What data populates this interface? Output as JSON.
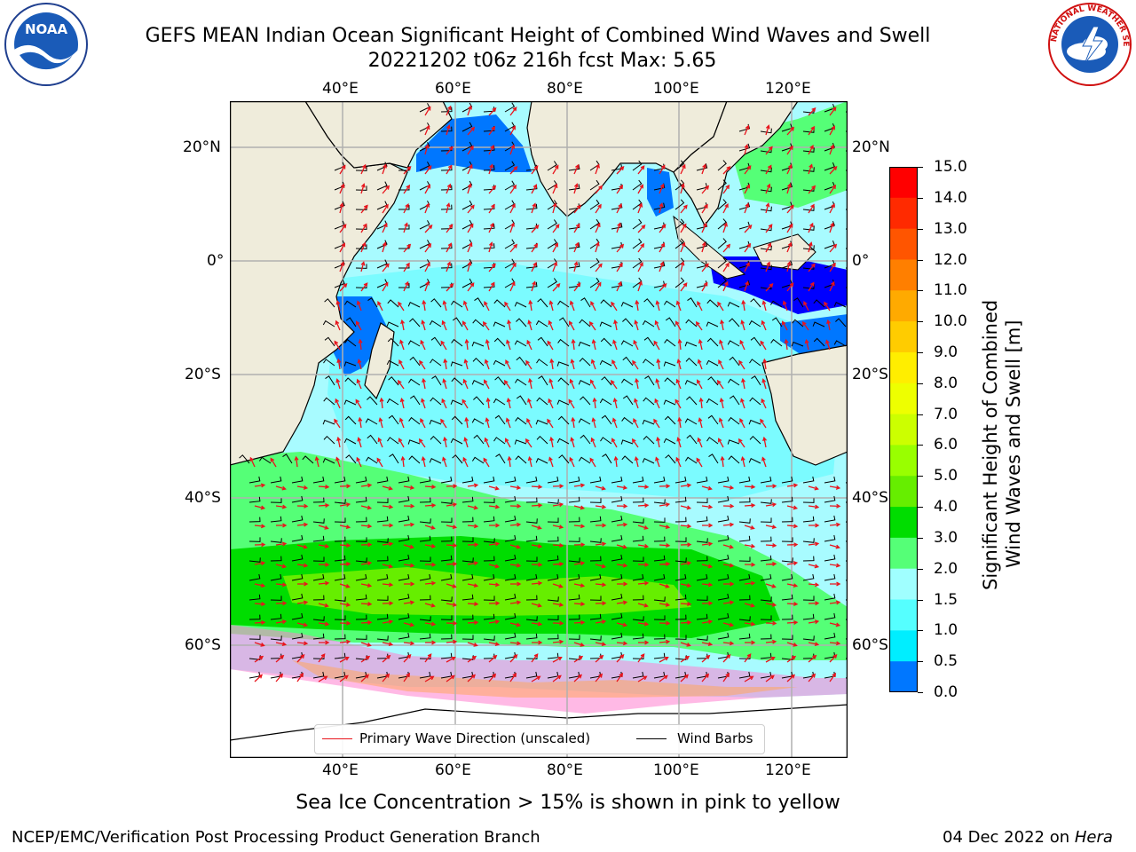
{
  "header": {
    "title_line1": "GEFS MEAN Indian Ocean Significant Height of Combined Wind Waves and Swell",
    "title_line2": "20221202 t06z 216h fcst   Max: 5.65"
  },
  "logos": {
    "left": {
      "icon": "noaa-logo",
      "text": "NOAA"
    },
    "right": {
      "icon": "nws-logo",
      "text": "NATIONAL WEATHER SERVICE"
    }
  },
  "map": {
    "lon_ticks": [
      "40°E",
      "60°E",
      "80°E",
      "100°E",
      "120°E"
    ],
    "lat_ticks": [
      "20°N",
      "0°",
      "20°S",
      "40°S",
      "60°S"
    ],
    "colors": {
      "land": "#efecdb",
      "wave_arrow": "#e8141c",
      "wind_barb": "#000000",
      "grid": "#b0b0b0"
    }
  },
  "legend": {
    "primary_wave": "Primary Wave Direction (unscaled)",
    "wind_barbs": "Wind Barbs"
  },
  "colorbar": {
    "label_line1": "Significant Height of Combined",
    "label_line2": "Wind Waves and Swell [m]",
    "ticks": [
      "15.0",
      "14.0",
      "13.0",
      "12.0",
      "11.0",
      "10.0",
      "9.0",
      "8.0",
      "7.0",
      "6.0",
      "5.0",
      "4.0",
      "3.0",
      "2.0",
      "1.5",
      "1.0",
      "0.5",
      "0.0"
    ],
    "colors": [
      "#ff0000",
      "#ff2a00",
      "#ff5500",
      "#ff7f00",
      "#ffaa00",
      "#ffcc00",
      "#ffee00",
      "#eeff00",
      "#ccff00",
      "#99ff00",
      "#66ee00",
      "#00dd00",
      "#55ff77",
      "#a0ffff",
      "#55ffff",
      "#00eeff",
      "#0077ff",
      "#0000ff"
    ]
  },
  "footer": {
    "sea_ice_note": "Sea Ice Concentration > 15% is shown in pink to yellow",
    "branch": "NCEP/EMC/Verification Post Processing Product Generation Branch",
    "date": "04 Dec 2022 on ",
    "host": "Hera"
  }
}
